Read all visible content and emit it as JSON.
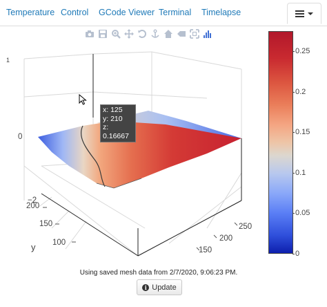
{
  "tabs": [
    {
      "label": "Temperature"
    },
    {
      "label": "Control"
    },
    {
      "label": "GCode Viewer"
    },
    {
      "label": "Terminal"
    },
    {
      "label": "Timelapse"
    }
  ],
  "menu_button": {
    "icon": "hamburger-icon",
    "caret": "caret-down-icon"
  },
  "modebar": [
    "camera-icon",
    "save-icon",
    "zoom-icon",
    "pan-icon",
    "orbit-icon",
    "turntable-icon",
    "home-icon",
    "reset-camera-icon",
    "autoscale-icon",
    "plotly-logo-icon"
  ],
  "plot": {
    "z_axis_ticks": [
      "0",
      "−2"
    ],
    "z_axis_top_tick": "1",
    "y_axis_title": "y",
    "y_axis_ticks": [
      "200",
      "150",
      "100"
    ],
    "x_axis_ticks": [
      "250",
      "200",
      "150"
    ]
  },
  "colorbar": {
    "ticks": [
      "0.25",
      "0.2",
      "0.15",
      "0.1",
      "0.05",
      "0"
    ],
    "tick_values": [
      0.25,
      0.2,
      0.15,
      0.1,
      0.05,
      0
    ],
    "range": [
      0,
      0.275
    ],
    "colorscale": "RdBu-reversed"
  },
  "tooltip": {
    "x_line": "x: 125",
    "y_line": "y: 210",
    "z_line": "z: 0.16667"
  },
  "status_text": "Using saved mesh data from 2/7/2020, 9:06:23 PM.",
  "update_button": {
    "label": "Update",
    "icon": "info-icon"
  }
}
